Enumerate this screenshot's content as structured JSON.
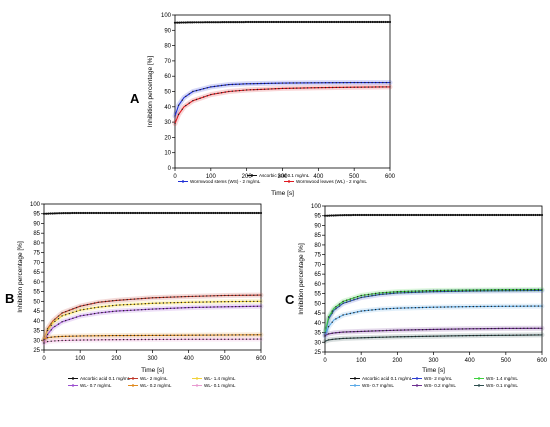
{
  "chart_data": [
    {
      "panel_label": "A",
      "type": "line",
      "xlabel": "Time [s]",
      "ylabel": "Inhibition percentage [%]",
      "xlim": [
        0,
        600
      ],
      "ylim": [
        0,
        100
      ],
      "xticks": [
        0,
        100,
        200,
        300,
        400,
        500,
        600
      ],
      "yticks": [
        0,
        10,
        20,
        30,
        40,
        50,
        60,
        70,
        80,
        90,
        100
      ],
      "legend_position": "bottom-right",
      "series": [
        {
          "name": "Ascorbic acid 0.1 mg/mL",
          "color": "#111111",
          "marker": "dot",
          "x": [
            0,
            50,
            100,
            200,
            300,
            400,
            500,
            600
          ],
          "y": [
            95,
            95.2,
            95.3,
            95.4,
            95.4,
            95.4,
            95.4,
            95.4
          ]
        },
        {
          "name": "Wormwood stems (WS) - 2 mg/mL",
          "color": "#1f2fd6",
          "marker": "line",
          "x": [
            0,
            10,
            25,
            50,
            100,
            150,
            200,
            300,
            400,
            500,
            600
          ],
          "y": [
            34,
            41,
            46,
            50,
            53,
            54.5,
            55,
            55.5,
            55.7,
            55.8,
            55.8
          ]
        },
        {
          "name": "Wormwood leaves (WL) - 2 mg/mL",
          "color": "#e0191f",
          "marker": "line",
          "x": [
            0,
            10,
            25,
            50,
            100,
            150,
            200,
            300,
            400,
            500,
            600
          ],
          "y": [
            29,
            35,
            40,
            44,
            48,
            50,
            51,
            52,
            52.5,
            52.8,
            53
          ]
        }
      ]
    },
    {
      "panel_label": "B",
      "type": "line",
      "xlabel": "Time [s]",
      "ylabel": "Inhibition percentage [%]",
      "xlim": [
        0,
        600
      ],
      "ylim": [
        25,
        100
      ],
      "xticks": [
        0,
        100,
        200,
        300,
        400,
        500,
        600
      ],
      "yticks": [
        25,
        30,
        35,
        40,
        45,
        50,
        55,
        60,
        65,
        70,
        75,
        80,
        85,
        90,
        95,
        100
      ],
      "legend_position": "bottom",
      "series": [
        {
          "name": "Ascorbic acid 0.1 mg/mL",
          "color": "#111111",
          "marker": "dot",
          "x": [
            0,
            50,
            100,
            200,
            300,
            400,
            500,
            600
          ],
          "y": [
            95,
            95.3,
            95.4,
            95.4,
            95.4,
            95.4,
            95.4,
            95.4
          ]
        },
        {
          "name": "WL- 2 mg/mL",
          "color": "#c0392b",
          "marker": "line",
          "x": [
            0,
            10,
            25,
            50,
            100,
            150,
            200,
            300,
            400,
            500,
            600
          ],
          "y": [
            30,
            36,
            40,
            44,
            47.5,
            49.5,
            50.5,
            51.8,
            52.5,
            53,
            53.2
          ]
        },
        {
          "name": "WL- 1.4 mg/mL",
          "color": "#f1d23a",
          "marker": "line",
          "x": [
            0,
            10,
            25,
            50,
            100,
            150,
            200,
            300,
            400,
            500,
            600
          ],
          "y": [
            30,
            35,
            39,
            42.5,
            45.5,
            47,
            48,
            49,
            49.5,
            49.8,
            50
          ]
        },
        {
          "name": "WL- 0.7 mg/mL",
          "color": "#9b4fd0",
          "marker": "line",
          "x": [
            0,
            10,
            25,
            50,
            100,
            150,
            200,
            300,
            400,
            500,
            600
          ],
          "y": [
            29,
            33,
            36.5,
            39.5,
            42.5,
            44,
            45,
            46,
            46.8,
            47.2,
            47.5
          ]
        },
        {
          "name": "WL- 0.2 mg/mL",
          "color": "#e08a1e",
          "marker": "line",
          "x": [
            0,
            10,
            25,
            50,
            100,
            200,
            300,
            400,
            500,
            600
          ],
          "y": [
            30.5,
            31.3,
            31.7,
            32,
            32.2,
            32.4,
            32.5,
            32.6,
            32.7,
            32.8
          ]
        },
        {
          "name": "WL- 0.1 mg/mL",
          "color": "#e89ad0",
          "marker": "line",
          "x": [
            0,
            10,
            25,
            50,
            100,
            200,
            300,
            400,
            500,
            600
          ],
          "y": [
            28.5,
            29.3,
            29.6,
            29.9,
            30.1,
            30.3,
            30.4,
            30.5,
            30.5,
            30.6
          ]
        }
      ]
    },
    {
      "panel_label": "C",
      "type": "line",
      "xlabel": "Time [s]",
      "ylabel": "Inhibition percentage [%]",
      "xlim": [
        0,
        600
      ],
      "ylim": [
        25,
        100
      ],
      "xticks": [
        0,
        100,
        200,
        300,
        400,
        500,
        600
      ],
      "yticks": [
        25,
        30,
        35,
        40,
        45,
        50,
        55,
        60,
        65,
        70,
        75,
        80,
        85,
        90,
        95,
        100
      ],
      "legend_position": "bottom",
      "series": [
        {
          "name": "Ascorbic acid 0.1 mg/mL",
          "color": "#111111",
          "marker": "dot",
          "x": [
            0,
            50,
            100,
            200,
            300,
            400,
            500,
            600
          ],
          "y": [
            95,
            95.3,
            95.4,
            95.4,
            95.4,
            95.4,
            95.4,
            95.4
          ]
        },
        {
          "name": "WS- 2 mg/mL",
          "color": "#2b3bd1",
          "marker": "line",
          "x": [
            0,
            10,
            25,
            50,
            100,
            150,
            200,
            300,
            400,
            500,
            600
          ],
          "y": [
            34,
            42,
            46.5,
            50,
            53,
            54.5,
            55.3,
            56,
            56.3,
            56.5,
            56.6
          ]
        },
        {
          "name": "WS- 1.4 mg/mL",
          "color": "#3cd13c",
          "marker": "line",
          "x": [
            0,
            10,
            25,
            50,
            100,
            150,
            200,
            300,
            400,
            500,
            600
          ],
          "y": [
            35,
            43,
            47.5,
            51,
            54,
            55.3,
            56,
            56.6,
            56.8,
            57,
            57.1
          ]
        },
        {
          "name": "WS- 0.7 mg/mL",
          "color": "#5aa9e6",
          "marker": "line",
          "x": [
            0,
            10,
            25,
            50,
            100,
            150,
            200,
            300,
            400,
            500,
            600
          ],
          "y": [
            33,
            38,
            41.5,
            44,
            46,
            47,
            47.5,
            48,
            48.3,
            48.5,
            48.6
          ]
        },
        {
          "name": "WS- 0.2 mg/mL",
          "color": "#6c2f8f",
          "marker": "line",
          "x": [
            0,
            10,
            25,
            50,
            100,
            200,
            300,
            400,
            500,
            600
          ],
          "y": [
            33.5,
            34.3,
            34.8,
            35.2,
            35.6,
            36.2,
            36.6,
            36.9,
            37.1,
            37.2
          ]
        },
        {
          "name": "WS- 0.1 mg/mL",
          "color": "#2f4f4f",
          "marker": "line",
          "x": [
            0,
            10,
            25,
            50,
            100,
            200,
            300,
            400,
            500,
            600
          ],
          "y": [
            30.5,
            31.2,
            31.6,
            32,
            32.3,
            32.8,
            33.1,
            33.4,
            33.6,
            33.8
          ]
        }
      ]
    }
  ]
}
